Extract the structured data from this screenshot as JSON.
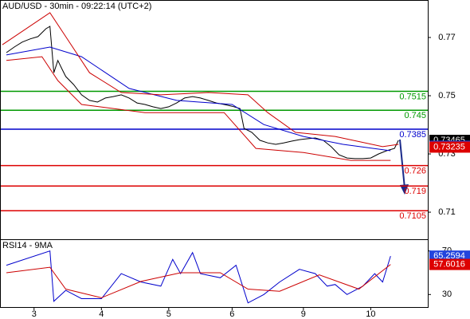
{
  "chart_data": [
    {
      "type": "line",
      "title": "AUD/USD - 30min - 09:22:14 (UTC+2)",
      "xlim": [
        -0.4,
        107.4
      ],
      "ylim": [
        0.7007,
        0.7826
      ],
      "yticks": [
        0.77,
        0.75,
        0.73,
        0.71
      ],
      "series": [
        {
          "color": "#000000",
          "x": [
            1,
            3,
            5,
            7,
            9,
            11,
            12,
            13,
            14,
            15,
            16,
            18,
            20,
            22,
            24,
            26,
            28,
            30,
            32,
            34,
            36,
            38,
            40,
            42,
            44,
            46,
            48,
            50,
            52,
            54,
            56,
            58,
            60,
            61,
            63,
            65,
            67,
            69,
            71,
            73,
            75,
            77,
            79,
            81,
            83,
            85,
            87,
            89,
            91,
            93,
            95,
            97,
            99,
            100
          ],
          "values": [
            0.7648,
            0.7667,
            0.7684,
            0.7695,
            0.7703,
            0.773,
            0.7738,
            0.7579,
            0.7621,
            0.7593,
            0.7566,
            0.7538,
            0.7503,
            0.7484,
            0.7478,
            0.7492,
            0.7497,
            0.7503,
            0.7492,
            0.7475,
            0.747,
            0.7462,
            0.7456,
            0.7462,
            0.7475,
            0.7492,
            0.7497,
            0.7492,
            0.7484,
            0.7475,
            0.747,
            0.7464,
            0.7456,
            0.7388,
            0.7374,
            0.7347,
            0.7338,
            0.7333,
            0.7338,
            0.7344,
            0.7349,
            0.7352,
            0.7355,
            0.7347,
            0.7325,
            0.7297,
            0.7286,
            0.7284,
            0.7284,
            0.7286,
            0.73,
            0.7311,
            0.7319,
            0.7347
          ]
        },
        {
          "color": "#0000cc",
          "x": [
            1,
            12,
            20,
            32,
            44,
            58,
            66,
            76,
            86,
            98
          ],
          "values": [
            0.764,
            0.7667,
            0.7634,
            0.7525,
            0.7484,
            0.747,
            0.7401,
            0.736,
            0.7333,
            0.7311
          ]
        },
        {
          "color": "#cc0000",
          "x": [
            0,
            12,
            16,
            22,
            30,
            40,
            52,
            62,
            67,
            74,
            84,
            96,
            100
          ],
          "values": [
            0.7675,
            0.7785,
            0.7703,
            0.7579,
            0.7511,
            0.7503,
            0.7511,
            0.7503,
            0.7442,
            0.7374,
            0.736,
            0.7325,
            0.7333
          ]
        },
        {
          "color": "#cc0000",
          "x": [
            1,
            10,
            14,
            20,
            36,
            56,
            64,
            76,
            88,
            98
          ],
          "values": [
            0.7621,
            0.7634,
            0.7552,
            0.747,
            0.7442,
            0.7442,
            0.7319,
            0.7305,
            0.7278,
            0.7278
          ]
        }
      ],
      "levels": [
        {
          "value": 0.7515,
          "color": "#009900"
        },
        {
          "value": 0.745,
          "color": "#009900"
        },
        {
          "value": 0.7385,
          "color": "#0000cc"
        },
        {
          "value": 0.726,
          "color": "#dd0000"
        },
        {
          "value": 0.719,
          "color": "#dd0000"
        },
        {
          "value": 0.7105,
          "color": "#dd0000"
        }
      ],
      "badges": [
        {
          "value": 0.73465,
          "color": "#000000"
        },
        {
          "value": 0.73265,
          "color": "#2244dd"
        },
        {
          "value": 0.73235,
          "color": "#dd0000"
        }
      ]
    },
    {
      "type": "line",
      "title": "RSI14 - 9MA",
      "xlim": [
        -0.4,
        107.4
      ],
      "ylim": [
        18.5,
        80
      ],
      "yticks": [
        70,
        30
      ],
      "xticks": [
        {
          "value": 8,
          "label": "3"
        },
        {
          "value": 25,
          "label": "4"
        },
        {
          "value": 42,
          "label": "5"
        },
        {
          "value": 58,
          "label": "6"
        },
        {
          "value": 76,
          "label": "9"
        },
        {
          "value": 93,
          "label": "10"
        }
      ],
      "series": [
        {
          "color": "#0000cc",
          "x": [
            1,
            12,
            13,
            16,
            20,
            25,
            30,
            35,
            40,
            43,
            45,
            48,
            50,
            55,
            59,
            62,
            66,
            70,
            75,
            79,
            82,
            84,
            87,
            91,
            94,
            96,
            98
          ],
          "values": [
            56.9,
            70,
            23.8,
            33.8,
            26.2,
            26.2,
            49.2,
            41.5,
            37.7,
            62.3,
            49.2,
            68.5,
            49.2,
            45.4,
            56.9,
            22.3,
            30,
            41.5,
            53.1,
            49.2,
            37.7,
            39.2,
            30,
            37.7,
            49.2,
            41.5,
            65.3
          ]
        },
        {
          "color": "#cc0000",
          "x": [
            1,
            12,
            16,
            25,
            35,
            45,
            55,
            62,
            70,
            80,
            90,
            98
          ],
          "values": [
            50,
            55,
            35,
            27,
            42,
            50,
            50,
            35,
            33,
            48,
            35,
            57.6
          ]
        }
      ],
      "badges": [
        {
          "value": 65.2594,
          "color": "#2244dd"
        },
        {
          "value": 57.6016,
          "color": "#dd0000"
        }
      ]
    }
  ]
}
